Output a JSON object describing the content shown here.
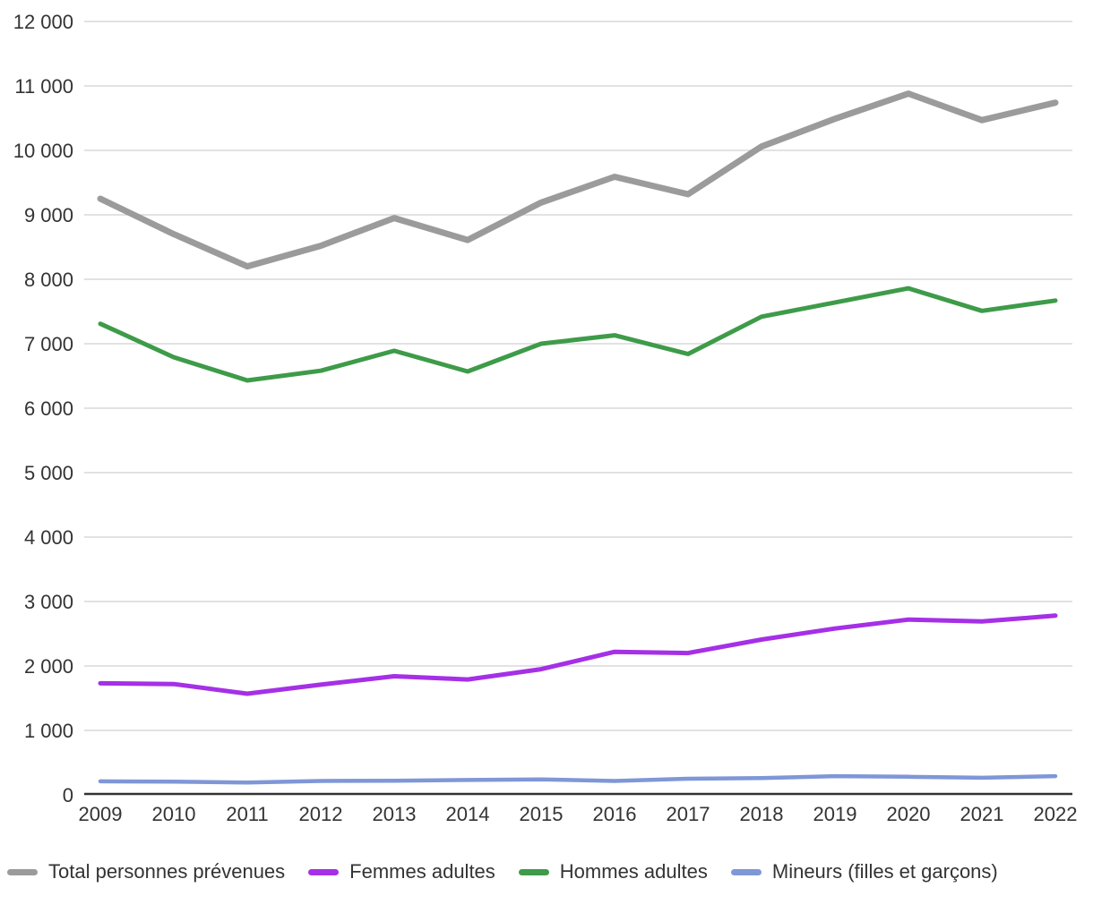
{
  "chart_data": {
    "type": "line",
    "title": "",
    "xlabel": "",
    "ylabel": "",
    "categories": [
      "2009",
      "2010",
      "2011",
      "2012",
      "2013",
      "2014",
      "2015",
      "2016",
      "2017",
      "2018",
      "2019",
      "2020",
      "2021",
      "2022"
    ],
    "series": [
      {
        "name": "Total personnes prévenues",
        "color": "#9b9b9b",
        "stroke_width": 7,
        "values": [
          9250,
          8700,
          8200,
          8520,
          8950,
          8610,
          9190,
          9590,
          9320,
          10060,
          10490,
          10880,
          10470,
          10740
        ]
      },
      {
        "name": "Femmes adultes",
        "color": "#a530e6",
        "stroke_width": 5,
        "values": [
          1730,
          1720,
          1570,
          1710,
          1840,
          1790,
          1950,
          2220,
          2200,
          2410,
          2580,
          2720,
          2690,
          2780
        ]
      },
      {
        "name": "Hommes adultes",
        "color": "#3e9b49",
        "stroke_width": 5,
        "values": [
          7310,
          6790,
          6430,
          6580,
          6890,
          6570,
          7000,
          7130,
          6840,
          7420,
          7640,
          7860,
          7510,
          7670
        ]
      },
      {
        "name": "Mineurs (filles et garçons)",
        "color": "#7f97d7",
        "stroke_width": 4.5,
        "values": [
          210,
          205,
          190,
          215,
          220,
          230,
          240,
          215,
          250,
          260,
          290,
          280,
          265,
          290
        ]
      }
    ],
    "ylim": [
      0,
      12000
    ],
    "y_tick_step": 1000,
    "y_tick_labels": [
      "0",
      "1 000",
      "2 000",
      "3 000",
      "4 000",
      "5 000",
      "6 000",
      "7 000",
      "8 000",
      "9 000",
      "10 000",
      "11 000",
      "12 000"
    ],
    "grid": true,
    "gridline_color": "#d8d8d8",
    "axis_line_color": "#333333",
    "tick_label_color": "#333333",
    "legend_position": "bottom"
  }
}
